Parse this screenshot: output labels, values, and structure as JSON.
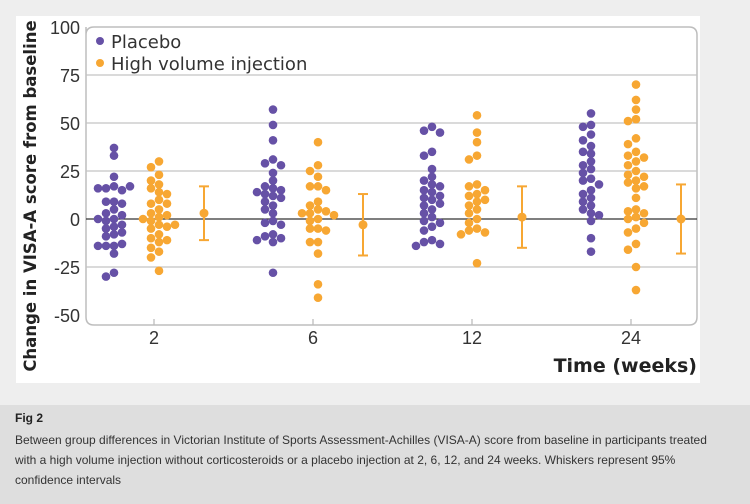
{
  "chart_data": {
    "type": "scatter",
    "title": "",
    "xlabel": "Time (weeks)",
    "ylabel": "Change in VISA-A score from baseline",
    "ylim": [
      -50,
      100
    ],
    "yticks": [
      "100",
      "75",
      "50",
      "25",
      "0",
      "-25",
      "-50"
    ],
    "ytick_values": [
      100,
      75,
      50,
      25,
      0,
      -25,
      -50
    ],
    "categories": [
      "2",
      "6",
      "12",
      "24"
    ],
    "grid": true,
    "legend_placement": "top-left",
    "series": [
      {
        "name": "Placebo",
        "color": "#6651a6",
        "values": [
          [
            37,
            33,
            22,
            17,
            16,
            15,
            16,
            17,
            9,
            9,
            8,
            5,
            3,
            2,
            0,
            0,
            -1,
            -3,
            -4,
            -5,
            -7,
            -8,
            -9,
            -14,
            -14,
            -13,
            -14,
            -18,
            -28,
            -30
          ],
          [
            57,
            49,
            41,
            31,
            29,
            28,
            24,
            20,
            17,
            16,
            15,
            14,
            13,
            12,
            11,
            9,
            7,
            5,
            3,
            -1,
            -2,
            -3,
            -8,
            -9,
            -10,
            -11,
            -12,
            -28
          ],
          [
            48,
            46,
            45,
            35,
            33,
            26,
            22,
            20,
            18,
            17,
            15,
            14,
            12,
            11,
            10,
            8,
            7,
            5,
            3,
            1,
            -1,
            -2,
            -4,
            -6,
            -11,
            -12,
            -13,
            -14
          ],
          [
            55,
            49,
            48,
            44,
            41,
            38,
            35,
            34,
            30,
            28,
            26,
            24,
            21,
            20,
            18,
            15,
            13,
            11,
            9,
            7,
            5,
            3,
            2,
            -1,
            -10,
            -17
          ]
        ]
      },
      {
        "name": "High volume injection",
        "color": "#f7a733",
        "values": [
          [
            30,
            27,
            23,
            20,
            18,
            16,
            14,
            13,
            10,
            8,
            8,
            5,
            3,
            2,
            1,
            0,
            -1,
            -3,
            -4,
            -3,
            -5,
            -8,
            -10,
            -11,
            -12,
            -15,
            -17,
            -20,
            -27
          ],
          [
            40,
            28,
            25,
            22,
            17,
            17,
            15,
            9,
            7,
            5,
            4,
            3,
            3,
            2,
            0,
            -1,
            -5,
            -5,
            -6,
            -12,
            -12,
            -18,
            -34,
            -41
          ],
          [
            54,
            45,
            40,
            33,
            31,
            18,
            17,
            15,
            13,
            12,
            10,
            9,
            7,
            5,
            3,
            0,
            -2,
            -5,
            -6,
            -7,
            -8,
            -23
          ],
          [
            70,
            62,
            57,
            52,
            51,
            42,
            39,
            35,
            33,
            32,
            30,
            28,
            25,
            23,
            22,
            20,
            19,
            17,
            16,
            11,
            5,
            4,
            3,
            1,
            0,
            -2,
            -5,
            -7,
            -13,
            -16,
            -25,
            -37
          ]
        ]
      }
    ],
    "between_group_difference": {
      "color": "#f7a733",
      "mean": [
        3,
        -3,
        1,
        0
      ],
      "ci_low": [
        -11,
        -19,
        -15,
        -18
      ],
      "ci_high": [
        17,
        13,
        17,
        18
      ]
    }
  },
  "caption": {
    "title": "Fig 2",
    "text": "Between group differences in Victorian Institute of Sports Assessment-Achilles (VISA-A) score from baseline in participants treated with a high volume injection without corticosteroids or a placebo injection at 2, 6, 12, and 24 weeks. Whiskers represent 95% confidence intervals"
  }
}
